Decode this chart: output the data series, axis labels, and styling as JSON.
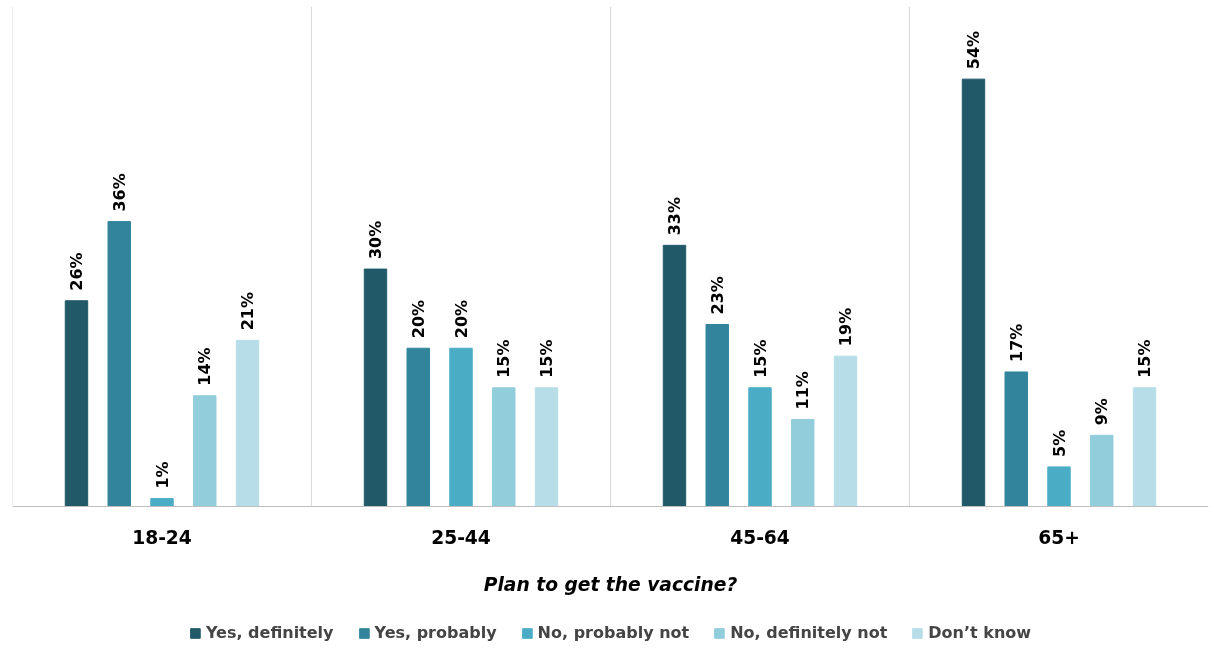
{
  "chart_data": {
    "type": "bar",
    "xlabel": "Plan to get the vaccine?",
    "categories": [
      "18-24",
      "25-44",
      "45-64",
      "65+"
    ],
    "series": [
      {
        "name": "Yes, definitely",
        "color": "#215968",
        "values": [
          26,
          30,
          33,
          54
        ],
        "value_labels": [
          "26%",
          "30%",
          "33%",
          "54%"
        ]
      },
      {
        "name": "Yes, probably",
        "color": "#31849b",
        "values": [
          36,
          20,
          23,
          17
        ],
        "value_labels": [
          "36%",
          "20%",
          "23%",
          "17%"
        ]
      },
      {
        "name": "No, probably not",
        "color": "#4bacc6",
        "values": [
          1,
          20,
          15,
          5
        ],
        "value_labels": [
          "1%",
          "20%",
          "15%",
          "5%"
        ]
      },
      {
        "name": "No, definitely not",
        "color": "#92cddc",
        "values": [
          14,
          15,
          11,
          9
        ],
        "value_labels": [
          "14%",
          "15%",
          "11%",
          "9%"
        ]
      },
      {
        "name": "Don’t know",
        "color": "#b7dee8",
        "values": [
          21,
          15,
          19,
          15
        ],
        "value_labels": [
          "21%",
          "15%",
          "19%",
          "15%"
        ]
      }
    ],
    "grid": "x",
    "legend": "bottom"
  }
}
